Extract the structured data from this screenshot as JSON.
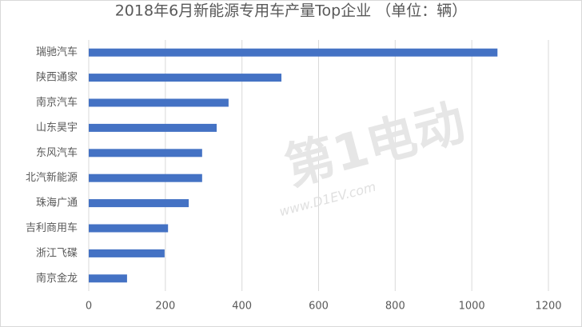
{
  "chart_data": {
    "type": "hbar",
    "title": "2018年6月新能源专用车产量Top企业 （单位：辆）",
    "categories": [
      "瑞驰汽车",
      "陕西通家",
      "南京汽车",
      "山东昊宇",
      "东风汽车",
      "北汽新能源",
      "珠海广通",
      "吉利商用车",
      "浙江飞碟",
      "南京金龙"
    ],
    "values": [
      1067,
      503,
      365,
      334,
      296,
      296,
      261,
      207,
      198,
      100
    ],
    "color": "#4472c4",
    "xlim": [
      0,
      1200
    ],
    "xticks": [
      0,
      200,
      400,
      600,
      800,
      1000,
      1200
    ],
    "grid": true,
    "watermark": [
      "第1电动",
      "www.D1EV.com"
    ]
  }
}
